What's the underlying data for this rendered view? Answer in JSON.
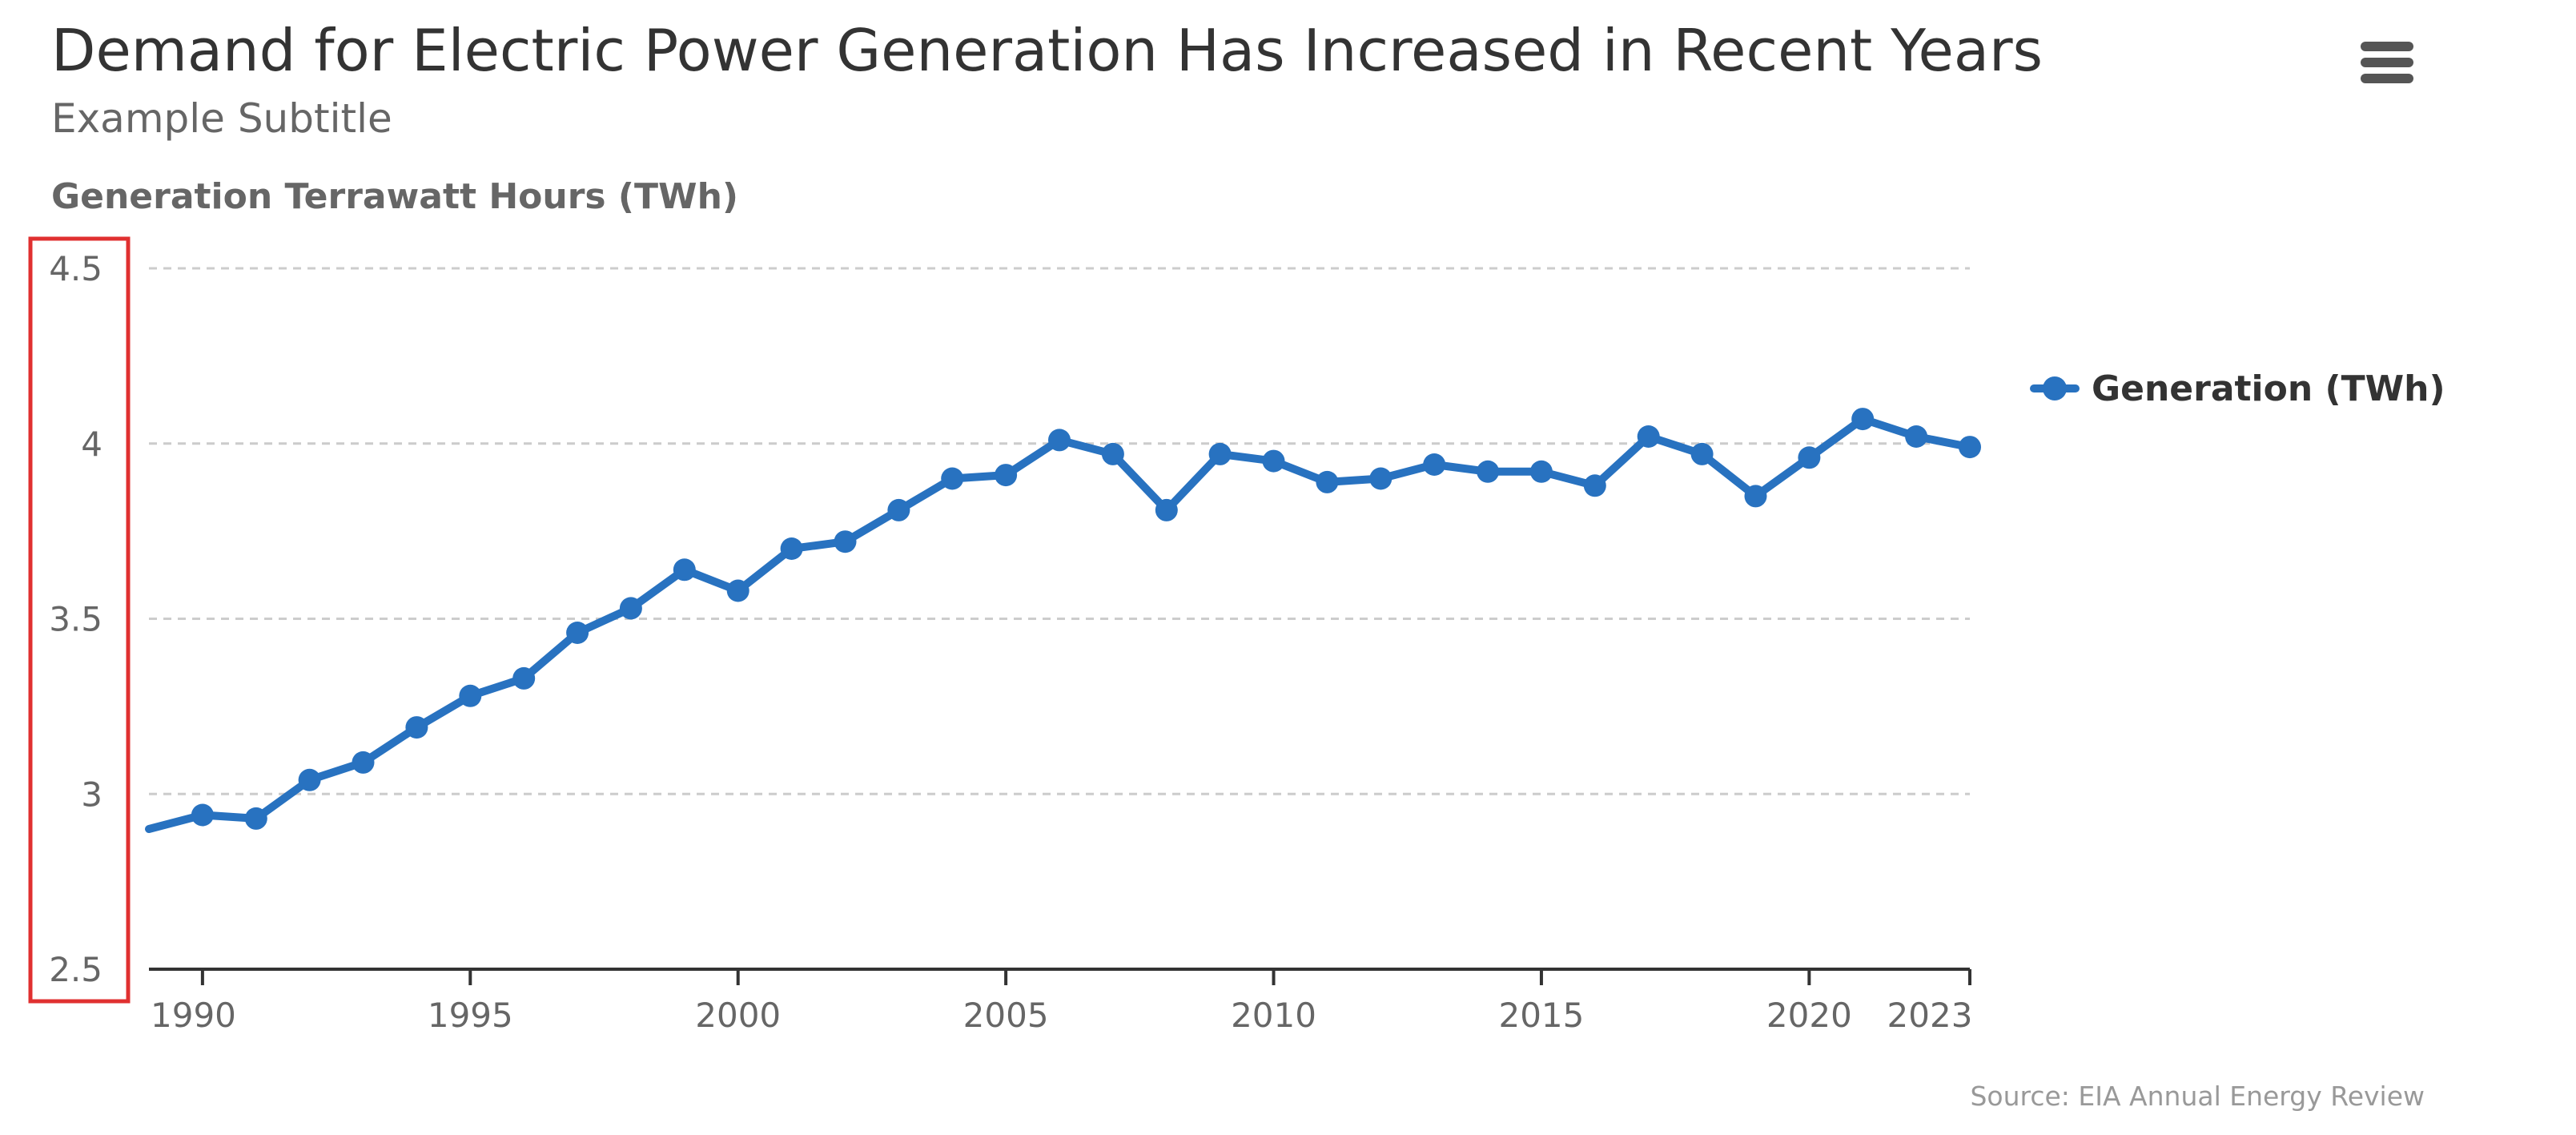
{
  "chart_data": {
    "type": "line",
    "title": "Demand for Electric Power Generation Has Increased in Recent Years",
    "subtitle": "Example Subtitle",
    "ylabel": "Generation Terrawatt Hours (TWh)",
    "xlabel": "",
    "ylim": [
      2.5,
      4.5
    ],
    "yticks": [
      "2.5",
      "3",
      "3.5",
      "4",
      "4.5"
    ],
    "xlim": [
      1989,
      2023
    ],
    "xticks": [
      "1990",
      "1995",
      "2000",
      "2005",
      "2010",
      "2015",
      "2020",
      "2023"
    ],
    "grid": true,
    "legend_position": "right",
    "series": [
      {
        "name": "Generation (TWh)",
        "color": "#2872c0",
        "x": [
          1989,
          1990,
          1991,
          1992,
          1993,
          1994,
          1995,
          1996,
          1997,
          1998,
          1999,
          2000,
          2001,
          2002,
          2003,
          2004,
          2005,
          2006,
          2007,
          2008,
          2009,
          2010,
          2011,
          2012,
          2013,
          2014,
          2015,
          2016,
          2017,
          2018,
          2019,
          2020,
          2021,
          2022,
          2023
        ],
        "values": [
          2.9,
          2.94,
          2.93,
          3.04,
          3.09,
          3.19,
          3.28,
          3.33,
          3.46,
          3.53,
          3.64,
          3.58,
          3.7,
          3.72,
          3.81,
          3.9,
          3.91,
          4.01,
          3.97,
          3.81,
          3.97,
          3.95,
          3.89,
          3.9,
          3.94,
          3.92,
          3.92,
          3.88,
          4.02,
          3.97,
          3.85,
          3.96,
          4.07,
          4.02,
          3.99
        ]
      }
    ],
    "credits": "Source: EIA Annual Energy Review"
  },
  "ui": {
    "menu_icon": "hamburger-menu-icon",
    "highlight_color": "#e03030"
  }
}
